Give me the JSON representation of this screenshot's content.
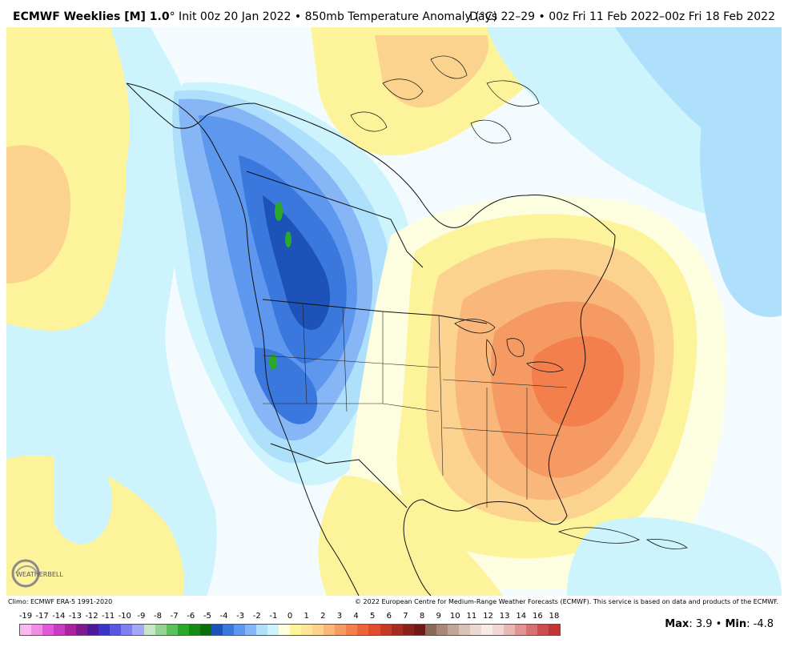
{
  "header": {
    "model": "ECMWF Weeklies [M] 1.0",
    "degree_mark": "°",
    "init": " Init 00z 20 Jan 2022 • 850mb Temperature Anomaly (°C)",
    "valid": "Days 22–29 • 00z Fri 11 Feb 2022–00z Fri 18 Feb 2022"
  },
  "footer": {
    "climo": "Climo: ECMWF ERA-5 1991-2020",
    "copyright": "© 2022 European Centre for Medium-Range Weather Forecasts (ECMWF). This service is based on data and products of the ECMWF."
  },
  "logo": {
    "text": "WEATHERBELL",
    "icon": "weatherbell-swirl-logo"
  },
  "colorbar": {
    "labels": [
      "-19",
      "-17",
      "-14",
      "-13",
      "-12",
      "-11",
      "-10",
      "-9",
      "-8",
      "-7",
      "-6",
      "-5",
      "-4",
      "-3",
      "-2",
      "-1",
      "0",
      "1",
      "2",
      "3",
      "4",
      "5",
      "6",
      "7",
      "8",
      "9",
      "10",
      "11",
      "12",
      "13",
      "14",
      "16",
      "18"
    ],
    "colors": [
      "#f7b9ef",
      "#f08ee6",
      "#e05ad8",
      "#c93bc0",
      "#a8239f",
      "#7e1b8c",
      "#4b1a9a",
      "#3a34c6",
      "#5858df",
      "#7f7ff0",
      "#a7a7f7",
      "#c9e6c9",
      "#93d493",
      "#5cc05c",
      "#2aa82a",
      "#148a14",
      "#0a6f0a",
      "#1d52b8",
      "#3a78de",
      "#5e98ee",
      "#86b6f6",
      "#aee0fb",
      "#cdf4fc",
      "#fdfde0",
      "#fdf39a",
      "#fde59a",
      "#fcd28f",
      "#f9b77b",
      "#f69a63",
      "#f27f4c",
      "#ec623a",
      "#e14d2c",
      "#c33a27",
      "#a52c22",
      "#87221d",
      "#6e1a19",
      "#8a6a5a",
      "#a88778",
      "#c2a598",
      "#d8c1b6",
      "#ead9d2",
      "#f6ebe7",
      "#f2d6d6",
      "#eab7b7",
      "#e29494",
      "#d77070",
      "#cc4d4d",
      "#c13535"
    ]
  },
  "stats": {
    "max_label": "Max",
    "max_value": "3.9",
    "sep": " • ",
    "min_label": "Min",
    "min_value": "-4.8"
  },
  "map_colors": {
    "ocean_base": "#f3fbfe",
    "lightblue": "#cdf4fc",
    "aqua": "#aee0fb",
    "blue1": "#86b6f6",
    "blue2": "#5e98ee",
    "blue3": "#3a78de",
    "blue4": "#1d52b8",
    "green": "#2aa82a",
    "yellow1": "#fdfde0",
    "yellow2": "#fdf39a",
    "yellow3": "#fde59a",
    "orange1": "#fcd28f",
    "orange2": "#f9b77b",
    "orange3": "#f69a63",
    "orange4": "#f27f4c"
  }
}
